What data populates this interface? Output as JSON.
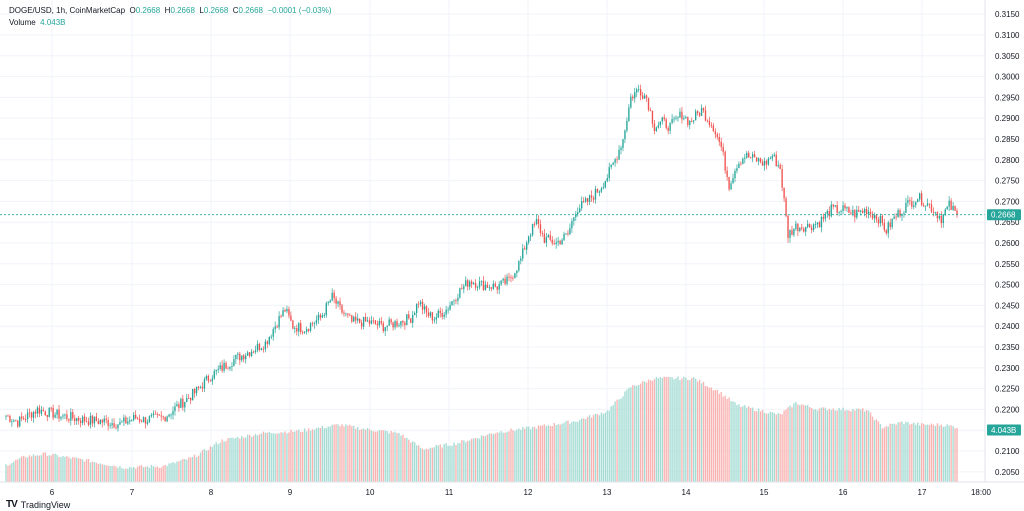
{
  "header": {
    "symbol": "DOGE/USD, 1h, CoinMarketCap",
    "o_label": "O",
    "o_val": "0.2668",
    "h_label": "H",
    "h_val": "0.2668",
    "l_label": "L",
    "l_val": "0.2668",
    "c_label": "C",
    "c_val": "0.2668",
    "change": "−0.0001 (−0.03%)",
    "volume_label": "Volume",
    "volume_val": "4.043B"
  },
  "branding": {
    "logo": "TV",
    "name": "TradingView"
  },
  "colors": {
    "up": "#26a69a",
    "down": "#ef5350",
    "up_volume": "#a5dcd4",
    "down_volume": "#f8b4b3",
    "grid": "#f0f3fa",
    "last_price_line": "#26a69a"
  },
  "chart_data": {
    "type": "candlestick",
    "title": "DOGE/USD, 1h, CoinMarketCap",
    "y_axis": {
      "position": "right",
      "range": [
        0.204,
        0.316
      ],
      "ticks": [
        "0.3150",
        "0.3100",
        "0.3050",
        "0.3000",
        "0.2950",
        "0.2900",
        "0.2850",
        "0.2800",
        "0.2750",
        "0.2700",
        "0.2650",
        "0.2600",
        "0.2550",
        "0.2500",
        "0.2450",
        "0.2400",
        "0.2350",
        "0.2300",
        "0.2250",
        "0.2200",
        "0.2150",
        "0.2100",
        "0.2050"
      ]
    },
    "x_axis": {
      "ticks": [
        "6",
        "7",
        "8",
        "9",
        "10",
        "11",
        "12",
        "13",
        "14",
        "15",
        "16",
        "17",
        "18:00"
      ]
    },
    "last_price": "0.2668",
    "last_volume": "4.043B",
    "price_path": [
      [
        0,
        0.2185
      ],
      [
        6,
        0.217
      ],
      [
        16,
        0.22
      ],
      [
        20,
        0.2195
      ],
      [
        28,
        0.2185
      ],
      [
        40,
        0.2175
      ],
      [
        52,
        0.217
      ],
      [
        58,
        0.2165
      ],
      [
        66,
        0.218
      ],
      [
        70,
        0.2175
      ],
      [
        80,
        0.218
      ],
      [
        88,
        0.221
      ],
      [
        96,
        0.224
      ],
      [
        104,
        0.228
      ],
      [
        110,
        0.23
      ],
      [
        116,
        0.232
      ],
      [
        124,
        0.234
      ],
      [
        132,
        0.236
      ],
      [
        138,
        0.241
      ],
      [
        142,
        0.244
      ],
      [
        146,
        0.24
      ],
      [
        152,
        0.2395
      ],
      [
        160,
        0.242
      ],
      [
        166,
        0.247
      ],
      [
        170,
        0.244
      ],
      [
        176,
        0.241
      ],
      [
        184,
        0.241
      ],
      [
        192,
        0.24
      ],
      [
        200,
        0.241
      ],
      [
        206,
        0.242
      ],
      [
        210,
        0.246
      ],
      [
        214,
        0.243
      ],
      [
        218,
        0.242
      ],
      [
        224,
        0.244
      ],
      [
        230,
        0.248
      ],
      [
        236,
        0.251
      ],
      [
        242,
        0.25
      ],
      [
        250,
        0.2495
      ],
      [
        256,
        0.251
      ],
      [
        262,
        0.256
      ],
      [
        266,
        0.262
      ],
      [
        270,
        0.265
      ],
      [
        274,
        0.261
      ],
      [
        280,
        0.26
      ],
      [
        286,
        0.262
      ],
      [
        290,
        0.268
      ],
      [
        296,
        0.27
      ],
      [
        302,
        0.273
      ],
      [
        306,
        0.276
      ],
      [
        310,
        0.28
      ],
      [
        314,
        0.285
      ],
      [
        318,
        0.295
      ],
      [
        322,
        0.297
      ],
      [
        326,
        0.295
      ],
      [
        330,
        0.288
      ],
      [
        334,
        0.289
      ],
      [
        338,
        0.288
      ],
      [
        344,
        0.291
      ],
      [
        348,
        0.289
      ],
      [
        354,
        0.292
      ],
      [
        360,
        0.288
      ],
      [
        364,
        0.283
      ],
      [
        368,
        0.274
      ],
      [
        372,
        0.279
      ],
      [
        376,
        0.281
      ],
      [
        382,
        0.28
      ],
      [
        386,
        0.279
      ],
      [
        390,
        0.281
      ],
      [
        394,
        0.278
      ],
      [
        396,
        0.27
      ],
      [
        398,
        0.262
      ],
      [
        402,
        0.264
      ],
      [
        408,
        0.264
      ],
      [
        414,
        0.265
      ],
      [
        420,
        0.268
      ],
      [
        426,
        0.268
      ],
      [
        432,
        0.267
      ],
      [
        438,
        0.268
      ],
      [
        444,
        0.266
      ],
      [
        448,
        0.263
      ],
      [
        452,
        0.266
      ],
      [
        458,
        0.269
      ],
      [
        464,
        0.271
      ],
      [
        470,
        0.269
      ],
      [
        476,
        0.266
      ],
      [
        480,
        0.269
      ],
      [
        484,
        0.2668
      ]
    ],
    "volume_path": [
      [
        0,
        0.14
      ],
      [
        10,
        0.21
      ],
      [
        20,
        0.23
      ],
      [
        40,
        0.18
      ],
      [
        60,
        0.12
      ],
      [
        80,
        0.13
      ],
      [
        95,
        0.2
      ],
      [
        110,
        0.34
      ],
      [
        130,
        0.4
      ],
      [
        150,
        0.42
      ],
      [
        170,
        0.47
      ],
      [
        180,
        0.44
      ],
      [
        200,
        0.4
      ],
      [
        212,
        0.27
      ],
      [
        230,
        0.32
      ],
      [
        250,
        0.41
      ],
      [
        270,
        0.45
      ],
      [
        290,
        0.5
      ],
      [
        306,
        0.58
      ],
      [
        318,
        0.78
      ],
      [
        330,
        0.85
      ],
      [
        350,
        0.85
      ],
      [
        362,
        0.75
      ],
      [
        372,
        0.63
      ],
      [
        380,
        0.6
      ],
      [
        394,
        0.55
      ],
      [
        402,
        0.65
      ],
      [
        412,
        0.6
      ],
      [
        420,
        0.6
      ],
      [
        438,
        0.59
      ],
      [
        446,
        0.45
      ],
      [
        456,
        0.49
      ],
      [
        466,
        0.47
      ],
      [
        476,
        0.47
      ],
      [
        484,
        0.45
      ]
    ],
    "candle_count": 485
  }
}
